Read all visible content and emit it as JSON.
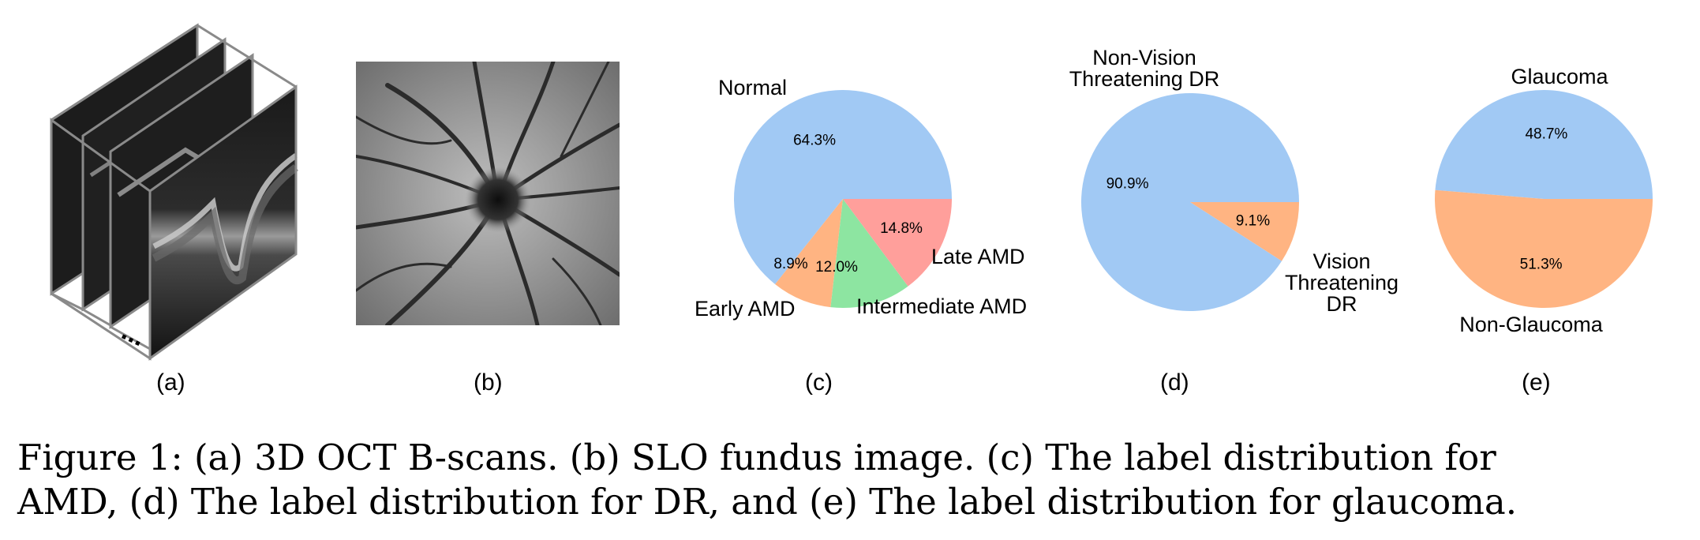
{
  "panels": {
    "a": {
      "label": "(a)",
      "ellipsis": "..."
    },
    "b": {
      "label": "(b)"
    },
    "c": {
      "label": "(c)"
    },
    "d": {
      "label": "(d)"
    },
    "e": {
      "label": "(e)"
    }
  },
  "caption": {
    "line1": "Figure 1:   (a) 3D OCT B-scans.  (b) SLO fundus image.  (c) The label distribution for",
    "line2": "AMD, (d) The label distribution for DR, and (e) The label distribution for glaucoma."
  },
  "chart_data": [
    {
      "type": "pie",
      "panel": "c",
      "slices": [
        {
          "label": "Normal",
          "value": 64.3,
          "pct_label": "64.3%",
          "color": "#a1c9f4"
        },
        {
          "label": "Early AMD",
          "value": 8.9,
          "pct_label": "8.9%",
          "color": "#ffb482"
        },
        {
          "label": "Intermediate AMD",
          "value": 12.0,
          "pct_label": "12.0%",
          "color": "#8de5a1"
        },
        {
          "label": "Late AMD",
          "value": 14.8,
          "pct_label": "14.8%",
          "color": "#ff9f9b"
        }
      ]
    },
    {
      "type": "pie",
      "panel": "d",
      "slices": [
        {
          "label": "Non-Vision Threatening DR",
          "label_lines": [
            "Non-Vision",
            "Threatening DR"
          ],
          "value": 90.9,
          "pct_label": "90.9%",
          "color": "#a1c9f4"
        },
        {
          "label": "Vision Threatening DR",
          "label_lines": [
            "Vision",
            "Threatening",
            "DR"
          ],
          "value": 9.1,
          "pct_label": "9.1%",
          "color": "#ffb482"
        }
      ]
    },
    {
      "type": "pie",
      "panel": "e",
      "slices": [
        {
          "label": "Glaucoma",
          "value": 48.7,
          "pct_label": "48.7%",
          "color": "#a1c9f4"
        },
        {
          "label": "Non-Glaucoma",
          "value": 51.3,
          "pct_label": "51.3%",
          "color": "#ffb482"
        }
      ]
    }
  ]
}
